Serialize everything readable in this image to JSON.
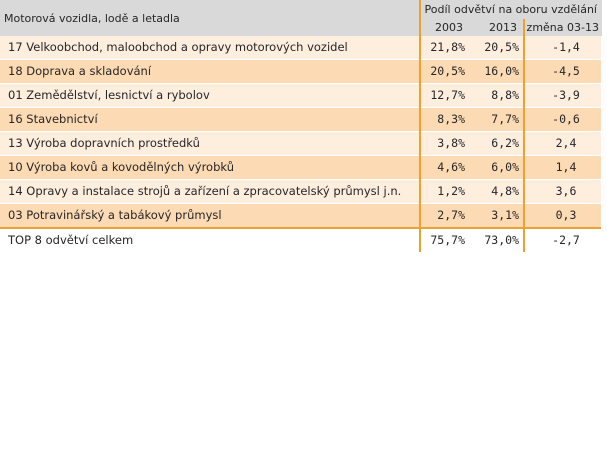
{
  "header": {
    "title": "Motorová vozidla, lodě a letadla",
    "group_label": "Podíl odvětví na oboru vzdělání",
    "col_2003": "2003",
    "col_2013": "2013",
    "col_change": "změna 03-13"
  },
  "rows": [
    {
      "label": "17 Velkoobchod, maloobchod a opravy motorových vozidel",
      "v2003": "21,8%",
      "v2013": "20,5%",
      "change": "-1,4"
    },
    {
      "label": "18 Doprava a skladování",
      "v2003": "20,5%",
      "v2013": "16,0%",
      "change": "-4,5"
    },
    {
      "label": "01 Zemědělství, lesnictví a rybolov",
      "v2003": "12,7%",
      "v2013": "8,8%",
      "change": "-3,9"
    },
    {
      "label": "16 Stavebnictví",
      "v2003": "8,3%",
      "v2013": "7,7%",
      "change": "-0,6"
    },
    {
      "label": "13 Výroba dopravních prostředků",
      "v2003": "3,8%",
      "v2013": "6,2%",
      "change": "2,4"
    },
    {
      "label": "10 Výroba kovů a kovodělných výrobků",
      "v2003": "4,6%",
      "v2013": "6,0%",
      "change": "1,4"
    },
    {
      "label": "14 Opravy a instalace strojů a zařízení a zpracovatelský průmysl j.n.",
      "v2003": "1,2%",
      "v2013": "4,8%",
      "change": "3,6"
    },
    {
      "label": "03 Potravinářský a tabákový průmysl",
      "v2003": "2,7%",
      "v2013": "3,1%",
      "change": "0,3"
    }
  ],
  "total": {
    "label": "TOP 8 odvětví celkem",
    "v2003": "75,7%",
    "v2013": "73,0%",
    "change": "-2,7"
  },
  "colors": {
    "header_bg": "#d9d9d9",
    "row_light": "#fdeede",
    "row_dark": "#fcdab3",
    "accent_line": "#f0a030"
  }
}
